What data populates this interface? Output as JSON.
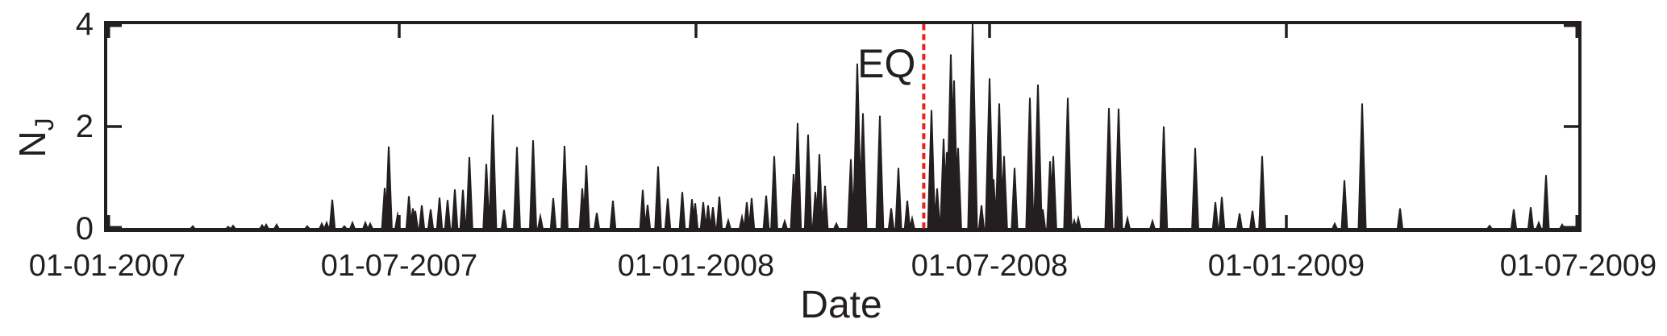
{
  "figure": {
    "background": "#ffffff",
    "ink_color": "#231f20"
  },
  "chart_data": {
    "type": "line",
    "title": "",
    "xlabel": "Date",
    "ylabel": "N_J",
    "ylabel_main": "N",
    "ylabel_sub": "J",
    "line_color": "#231f20",
    "grid": false,
    "legend": "none",
    "ylim": [
      0,
      4
    ],
    "yticks": [
      0,
      2,
      4
    ],
    "ytick_labels": [
      "0",
      "2",
      "4"
    ],
    "xlim_days": [
      0,
      912
    ],
    "xtick_days": [
      0,
      181,
      365,
      547,
      731,
      912
    ],
    "xtick_labels": [
      "01-01-2007",
      "01-07-2007",
      "01-01-2008",
      "01-07-2008",
      "01-01-2009",
      "01-07-2009"
    ],
    "event_line": {
      "label": "EQ",
      "day": 506.2,
      "color": "#e8231a",
      "style": "dashed"
    },
    "series_note": "daily spike values N_J; [day offset from 01-01-2007, peak value], baseline 0 elsewhere",
    "spikes_day_value": [
      [
        53,
        0.05
      ],
      [
        75,
        0.04
      ],
      [
        78,
        0.06
      ],
      [
        96,
        0.07
      ],
      [
        98.5,
        0.08
      ],
      [
        105,
        0.08
      ],
      [
        124,
        0.05
      ],
      [
        133,
        0.1
      ],
      [
        136,
        0.12
      ],
      [
        139.5,
        0.57
      ],
      [
        147,
        0.05
      ],
      [
        152,
        0.12
      ],
      [
        160,
        0.12
      ],
      [
        163,
        0.1
      ],
      [
        172,
        0.8
      ],
      [
        174.5,
        1.61
      ],
      [
        180,
        0.27
      ],
      [
        187,
        0.64
      ],
      [
        189.5,
        0.4
      ],
      [
        191,
        0.35
      ],
      [
        195,
        0.46
      ],
      [
        200.5,
        0.38
      ],
      [
        206,
        0.61
      ],
      [
        211,
        0.56
      ],
      [
        215.5,
        0.77
      ],
      [
        220.5,
        0.76
      ],
      [
        224.5,
        1.4
      ],
      [
        235,
        1.27
      ],
      [
        239,
        2.23
      ],
      [
        246,
        0.37
      ],
      [
        254,
        1.6
      ],
      [
        264,
        1.73
      ],
      [
        268.5,
        0.24
      ],
      [
        276.5,
        0.6
      ],
      [
        283.5,
        1.62
      ],
      [
        294.5,
        0.79
      ],
      [
        297,
        1.24
      ],
      [
        303.5,
        0.31
      ],
      [
        313.5,
        0.55
      ],
      [
        332,
        0.76
      ],
      [
        335,
        0.47
      ],
      [
        341.5,
        1.22
      ],
      [
        347.5,
        0.59
      ],
      [
        356.5,
        0.72
      ],
      [
        362.5,
        0.58
      ],
      [
        364.5,
        0.5
      ],
      [
        369.5,
        0.52
      ],
      [
        372.5,
        0.46
      ],
      [
        375.5,
        0.42
      ],
      [
        379.5,
        0.63
      ],
      [
        385,
        0.16
      ],
      [
        393.5,
        0.23
      ],
      [
        396.5,
        0.52
      ],
      [
        399.5,
        0.6
      ],
      [
        408.5,
        0.65
      ],
      [
        413.5,
        1.42
      ],
      [
        420,
        0.15
      ],
      [
        425.5,
        1.07
      ],
      [
        428,
        2.07
      ],
      [
        434.5,
        1.84
      ],
      [
        439,
        0.72
      ],
      [
        441.5,
        1.46
      ],
      [
        445,
        0.84
      ],
      [
        452,
        0.1
      ],
      [
        461,
        1.36
      ],
      [
        465,
        3.23
      ],
      [
        468.5,
        2.26
      ],
      [
        479,
        2.21
      ],
      [
        486,
        0.4
      ],
      [
        490.5,
        1.19
      ],
      [
        496,
        0.55
      ],
      [
        499,
        0.2
      ],
      [
        511,
        2.32
      ],
      [
        514.5,
        0.79
      ],
      [
        518.5,
        1.76
      ],
      [
        520.5,
        1.5
      ],
      [
        523,
        3.41
      ],
      [
        525,
        2.9
      ],
      [
        527.5,
        1.58
      ],
      [
        536.5,
        4.0
      ],
      [
        542,
        0.46
      ],
      [
        547,
        2.94
      ],
      [
        549.5,
        0.97
      ],
      [
        553,
        2.45
      ],
      [
        556,
        1.42
      ],
      [
        562.5,
        1.19
      ],
      [
        572,
        2.56
      ],
      [
        577,
        2.82
      ],
      [
        580,
        0.38
      ],
      [
        584.5,
        1.32
      ],
      [
        586.5,
        1.42
      ],
      [
        595.5,
        2.56
      ],
      [
        599.5,
        0.16
      ],
      [
        602,
        0.2
      ],
      [
        621,
        2.36
      ],
      [
        627,
        2.35
      ],
      [
        632.5,
        0.2
      ],
      [
        648,
        0.15
      ],
      [
        655,
        2.0
      ],
      [
        674.5,
        1.58
      ],
      [
        687,
        0.52
      ],
      [
        691,
        0.62
      ],
      [
        702,
        0.3
      ],
      [
        710,
        0.35
      ],
      [
        716,
        1.42
      ],
      [
        761,
        0.1
      ],
      [
        767,
        0.95
      ],
      [
        778,
        2.45
      ],
      [
        801.5,
        0.4
      ],
      [
        857,
        0.06
      ],
      [
        872,
        0.38
      ],
      [
        882.5,
        0.42
      ],
      [
        887.5,
        0.12
      ],
      [
        892,
        1.05
      ],
      [
        902,
        0.08
      ]
    ]
  }
}
